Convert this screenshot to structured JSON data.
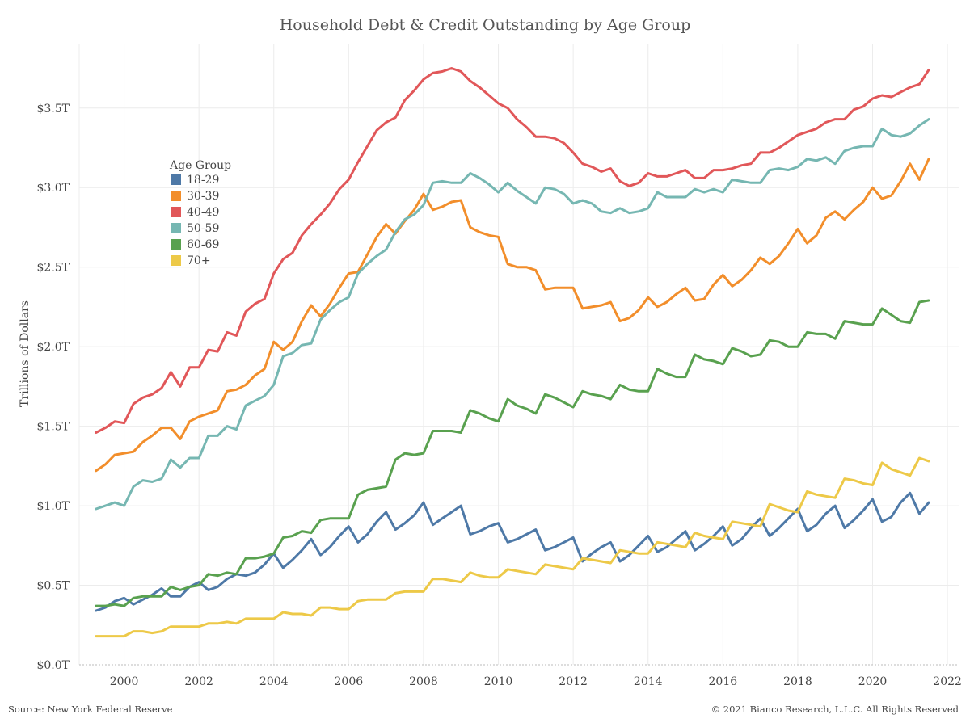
{
  "footer": {
    "source": "Source: New York Federal Reserve",
    "copyright": "© 2021 Bianco Research, L.L.C. All Rights Reserved"
  },
  "chart_data": {
    "type": "line",
    "title": "Household Debt & Credit Outstanding by Age Group",
    "xlabel": "",
    "ylabel": "Trillions of Dollars",
    "x_ticks": [
      "2000",
      "2002",
      "2004",
      "2006",
      "2008",
      "2010",
      "2012",
      "2014",
      "2016",
      "2018",
      "2020",
      "2022"
    ],
    "y_ticks": [
      "$0.0T",
      "$0.5T",
      "$1.0T",
      "$1.5T",
      "$2.0T",
      "$2.5T",
      "$3.0T",
      "$3.5T"
    ],
    "xlim": [
      1998.8,
      2022.3
    ],
    "ylim": [
      0,
      3.9
    ],
    "grid": true,
    "legend": {
      "title": "Age Group",
      "position": "top-left"
    },
    "x": [
      1999.25,
      1999.5,
      1999.75,
      2000.0,
      2000.25,
      2000.5,
      2000.75,
      2001.0,
      2001.25,
      2001.5,
      2001.75,
      2002.0,
      2002.25,
      2002.5,
      2002.75,
      2003.0,
      2003.25,
      2003.5,
      2003.75,
      2004.0,
      2004.25,
      2004.5,
      2004.75,
      2005.0,
      2005.25,
      2005.5,
      2005.75,
      2006.0,
      2006.25,
      2006.5,
      2006.75,
      2007.0,
      2007.25,
      2007.5,
      2007.75,
      2008.0,
      2008.25,
      2008.5,
      2008.75,
      2009.0,
      2009.25,
      2009.5,
      2009.75,
      2010.0,
      2010.25,
      2010.5,
      2010.75,
      2011.0,
      2011.25,
      2011.5,
      2011.75,
      2012.0,
      2012.25,
      2012.5,
      2012.75,
      2013.0,
      2013.25,
      2013.5,
      2013.75,
      2014.0,
      2014.25,
      2014.5,
      2014.75,
      2015.0,
      2015.25,
      2015.5,
      2015.75,
      2016.0,
      2016.25,
      2016.5,
      2016.75,
      2017.0,
      2017.25,
      2017.5,
      2017.75,
      2018.0,
      2018.25,
      2018.5,
      2018.75,
      2019.0,
      2019.25,
      2019.5,
      2019.75,
      2020.0,
      2020.25,
      2020.5,
      2020.75,
      2021.0,
      2021.25,
      2021.5
    ],
    "series": [
      {
        "name": "18-29",
        "color": "#4e79a7",
        "values": [
          0.34,
          0.36,
          0.4,
          0.42,
          0.38,
          0.41,
          0.44,
          0.48,
          0.43,
          0.43,
          0.49,
          0.52,
          0.47,
          0.49,
          0.54,
          0.57,
          0.56,
          0.58,
          0.63,
          0.7,
          0.61,
          0.66,
          0.72,
          0.79,
          0.69,
          0.74,
          0.81,
          0.87,
          0.77,
          0.82,
          0.9,
          0.96,
          0.85,
          0.89,
          0.94,
          1.02,
          0.88,
          0.92,
          0.96,
          1.0,
          0.82,
          0.84,
          0.87,
          0.89,
          0.77,
          0.79,
          0.82,
          0.85,
          0.72,
          0.74,
          0.77,
          0.8,
          0.65,
          0.7,
          0.74,
          0.77,
          0.65,
          0.69,
          0.75,
          0.81,
          0.71,
          0.74,
          0.79,
          0.84,
          0.72,
          0.76,
          0.81,
          0.87,
          0.75,
          0.79,
          0.86,
          0.92,
          0.81,
          0.86,
          0.92,
          0.98,
          0.84,
          0.88,
          0.95,
          1.0,
          0.86,
          0.91,
          0.97,
          1.04,
          0.9,
          0.93,
          1.02,
          1.08,
          0.95,
          1.02
        ]
      },
      {
        "name": "30-39",
        "color": "#f28e2b",
        "values": [
          1.22,
          1.26,
          1.32,
          1.33,
          1.34,
          1.4,
          1.44,
          1.49,
          1.49,
          1.42,
          1.53,
          1.56,
          1.58,
          1.6,
          1.72,
          1.73,
          1.76,
          1.82,
          1.86,
          2.03,
          1.98,
          2.03,
          2.16,
          2.26,
          2.19,
          2.27,
          2.37,
          2.46,
          2.47,
          2.58,
          2.69,
          2.77,
          2.71,
          2.79,
          2.86,
          2.96,
          2.86,
          2.88,
          2.91,
          2.92,
          2.75,
          2.72,
          2.7,
          2.69,
          2.52,
          2.5,
          2.5,
          2.48,
          2.36,
          2.37,
          2.37,
          2.37,
          2.24,
          2.25,
          2.26,
          2.28,
          2.16,
          2.18,
          2.23,
          2.31,
          2.25,
          2.28,
          2.33,
          2.37,
          2.29,
          2.3,
          2.39,
          2.45,
          2.38,
          2.42,
          2.48,
          2.56,
          2.52,
          2.57,
          2.65,
          2.74,
          2.65,
          2.7,
          2.81,
          2.85,
          2.8,
          2.86,
          2.91,
          3.0,
          2.93,
          2.95,
          3.04,
          3.15,
          3.05,
          3.18
        ]
      },
      {
        "name": "40-49",
        "color": "#e15759",
        "values": [
          1.46,
          1.49,
          1.53,
          1.52,
          1.64,
          1.68,
          1.7,
          1.74,
          1.84,
          1.75,
          1.87,
          1.87,
          1.98,
          1.97,
          2.09,
          2.07,
          2.22,
          2.27,
          2.3,
          2.46,
          2.55,
          2.59,
          2.7,
          2.77,
          2.83,
          2.9,
          2.99,
          3.05,
          3.16,
          3.26,
          3.36,
          3.41,
          3.44,
          3.55,
          3.61,
          3.68,
          3.72,
          3.73,
          3.75,
          3.73,
          3.67,
          3.63,
          3.58,
          3.53,
          3.5,
          3.43,
          3.38,
          3.32,
          3.32,
          3.31,
          3.28,
          3.22,
          3.15,
          3.13,
          3.1,
          3.12,
          3.04,
          3.01,
          3.03,
          3.09,
          3.07,
          3.07,
          3.09,
          3.11,
          3.06,
          3.06,
          3.11,
          3.11,
          3.12,
          3.14,
          3.15,
          3.22,
          3.22,
          3.25,
          3.29,
          3.33,
          3.35,
          3.37,
          3.41,
          3.43,
          3.43,
          3.49,
          3.51,
          3.56,
          3.58,
          3.57,
          3.6,
          3.63,
          3.65,
          3.74
        ]
      },
      {
        "name": "50-59",
        "color": "#76b7b2",
        "values": [
          0.98,
          1.0,
          1.02,
          1.0,
          1.12,
          1.16,
          1.15,
          1.17,
          1.29,
          1.24,
          1.3,
          1.3,
          1.44,
          1.44,
          1.5,
          1.48,
          1.63,
          1.66,
          1.69,
          1.76,
          1.94,
          1.96,
          2.01,
          2.02,
          2.17,
          2.23,
          2.28,
          2.31,
          2.46,
          2.52,
          2.57,
          2.61,
          2.72,
          2.8,
          2.83,
          2.89,
          3.03,
          3.04,
          3.03,
          3.03,
          3.09,
          3.06,
          3.02,
          2.97,
          3.03,
          2.98,
          2.94,
          2.9,
          3.0,
          2.99,
          2.96,
          2.9,
          2.92,
          2.9,
          2.85,
          2.84,
          2.87,
          2.84,
          2.85,
          2.87,
          2.97,
          2.94,
          2.94,
          2.94,
          2.99,
          2.97,
          2.99,
          2.97,
          3.05,
          3.04,
          3.03,
          3.03,
          3.11,
          3.12,
          3.11,
          3.13,
          3.18,
          3.17,
          3.19,
          3.15,
          3.23,
          3.25,
          3.26,
          3.26,
          3.37,
          3.33,
          3.32,
          3.34,
          3.39,
          3.43
        ]
      },
      {
        "name": "60-69",
        "color": "#59a14f",
        "values": [
          0.37,
          0.37,
          0.38,
          0.37,
          0.42,
          0.43,
          0.43,
          0.43,
          0.49,
          0.47,
          0.49,
          0.5,
          0.57,
          0.56,
          0.58,
          0.57,
          0.67,
          0.67,
          0.68,
          0.7,
          0.8,
          0.81,
          0.84,
          0.83,
          0.91,
          0.92,
          0.92,
          0.92,
          1.07,
          1.1,
          1.11,
          1.12,
          1.29,
          1.33,
          1.32,
          1.33,
          1.47,
          1.47,
          1.47,
          1.46,
          1.6,
          1.58,
          1.55,
          1.53,
          1.67,
          1.63,
          1.61,
          1.58,
          1.7,
          1.68,
          1.65,
          1.62,
          1.72,
          1.7,
          1.69,
          1.67,
          1.76,
          1.73,
          1.72,
          1.72,
          1.86,
          1.83,
          1.81,
          1.81,
          1.95,
          1.92,
          1.91,
          1.89,
          1.99,
          1.97,
          1.94,
          1.95,
          2.04,
          2.03,
          2.0,
          2.0,
          2.09,
          2.08,
          2.08,
          2.05,
          2.16,
          2.15,
          2.14,
          2.14,
          2.24,
          2.2,
          2.16,
          2.15,
          2.28,
          2.29
        ]
      },
      {
        "name": "70+",
        "color": "#edc948",
        "values": [
          0.18,
          0.18,
          0.18,
          0.18,
          0.21,
          0.21,
          0.2,
          0.21,
          0.24,
          0.24,
          0.24,
          0.24,
          0.26,
          0.26,
          0.27,
          0.26,
          0.29,
          0.29,
          0.29,
          0.29,
          0.33,
          0.32,
          0.32,
          0.31,
          0.36,
          0.36,
          0.35,
          0.35,
          0.4,
          0.41,
          0.41,
          0.41,
          0.45,
          0.46,
          0.46,
          0.46,
          0.54,
          0.54,
          0.53,
          0.52,
          0.58,
          0.56,
          0.55,
          0.55,
          0.6,
          0.59,
          0.58,
          0.57,
          0.63,
          0.62,
          0.61,
          0.6,
          0.67,
          0.66,
          0.65,
          0.64,
          0.72,
          0.71,
          0.7,
          0.7,
          0.77,
          0.76,
          0.75,
          0.74,
          0.83,
          0.81,
          0.8,
          0.79,
          0.9,
          0.89,
          0.88,
          0.87,
          1.01,
          0.99,
          0.97,
          0.96,
          1.09,
          1.07,
          1.06,
          1.05,
          1.17,
          1.16,
          1.14,
          1.13,
          1.27,
          1.23,
          1.21,
          1.19,
          1.3,
          1.28
        ]
      }
    ]
  }
}
